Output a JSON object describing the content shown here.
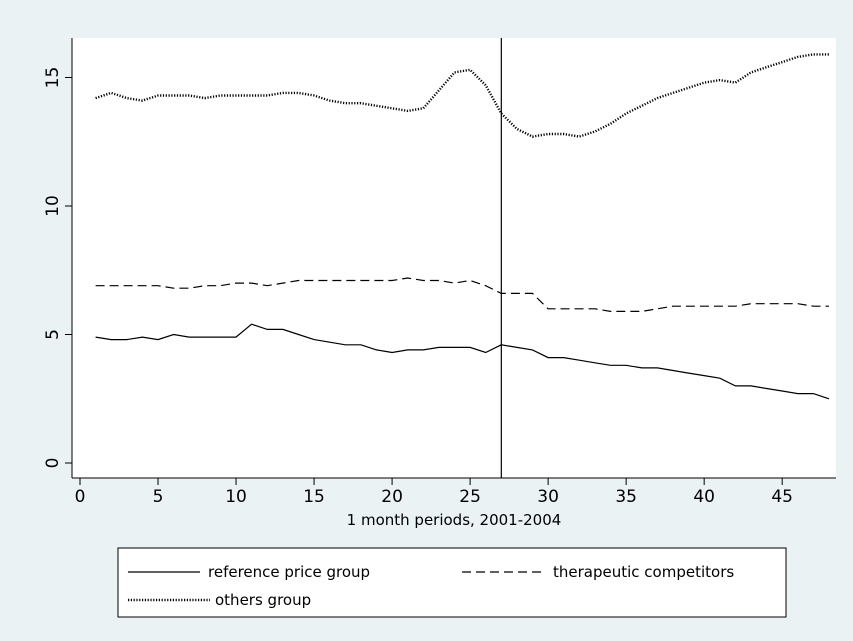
{
  "chart_data": {
    "type": "line",
    "title": "",
    "xlabel": "1 month periods, 2001-2004",
    "ylabel": "",
    "xlim": [
      0,
      48
    ],
    "ylim": [
      0,
      16.5
    ],
    "x_ticks": [
      0,
      5,
      10,
      15,
      20,
      25,
      30,
      35,
      40,
      45
    ],
    "y_ticks": [
      0,
      5,
      10,
      15
    ],
    "grid": false,
    "legend_position": "bottom",
    "vertical_reference_x": 27,
    "x": [
      1,
      2,
      3,
      4,
      5,
      6,
      7,
      8,
      9,
      10,
      11,
      12,
      13,
      14,
      15,
      16,
      17,
      18,
      19,
      20,
      21,
      22,
      23,
      24,
      25,
      26,
      27,
      28,
      29,
      30,
      31,
      32,
      33,
      34,
      35,
      36,
      37,
      38,
      39,
      40,
      41,
      42,
      43,
      44,
      45,
      46,
      47,
      48
    ],
    "series": [
      {
        "name": "reference price group",
        "style": "solid",
        "values": [
          4.9,
          4.8,
          4.8,
          4.9,
          4.8,
          5.0,
          4.9,
          4.9,
          4.9,
          4.9,
          5.4,
          5.2,
          5.2,
          5.0,
          4.8,
          4.7,
          4.6,
          4.6,
          4.4,
          4.3,
          4.4,
          4.4,
          4.5,
          4.5,
          4.5,
          4.3,
          4.6,
          4.5,
          4.4,
          4.1,
          4.1,
          4.0,
          3.9,
          3.8,
          3.8,
          3.7,
          3.7,
          3.6,
          3.5,
          3.4,
          3.3,
          3.0,
          3.0,
          2.9,
          2.8,
          2.7,
          2.7,
          2.5
        ]
      },
      {
        "name": "therapeutic competitors",
        "style": "dashed",
        "values": [
          6.9,
          6.9,
          6.9,
          6.9,
          6.9,
          6.8,
          6.8,
          6.9,
          6.9,
          7.0,
          7.0,
          6.9,
          7.0,
          7.1,
          7.1,
          7.1,
          7.1,
          7.1,
          7.1,
          7.1,
          7.2,
          7.1,
          7.1,
          7.0,
          7.1,
          6.9,
          6.6,
          6.6,
          6.6,
          6.0,
          6.0,
          6.0,
          6.0,
          5.9,
          5.9,
          5.9,
          6.0,
          6.1,
          6.1,
          6.1,
          6.1,
          6.1,
          6.2,
          6.2,
          6.2,
          6.2,
          6.1,
          6.1
        ]
      },
      {
        "name": "others group",
        "style": "dotted",
        "values": [
          14.2,
          14.4,
          14.2,
          14.1,
          14.3,
          14.3,
          14.3,
          14.2,
          14.3,
          14.3,
          14.3,
          14.3,
          14.4,
          14.4,
          14.3,
          14.1,
          14.0,
          14.0,
          13.9,
          13.8,
          13.7,
          13.8,
          14.5,
          15.2,
          15.3,
          14.7,
          13.6,
          13.0,
          12.7,
          12.8,
          12.8,
          12.7,
          12.9,
          13.2,
          13.6,
          13.9,
          14.2,
          14.4,
          14.6,
          14.8,
          14.9,
          14.8,
          15.2,
          15.4,
          15.6,
          15.8,
          15.9,
          15.9
        ]
      }
    ]
  }
}
